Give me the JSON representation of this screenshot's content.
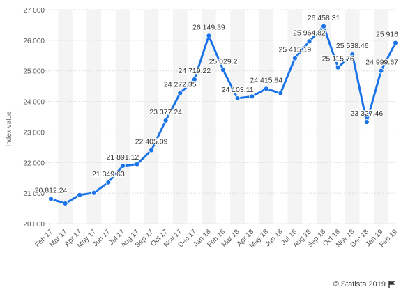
{
  "chart_data": {
    "type": "line",
    "ylabel": "Index value",
    "xlabel": "",
    "ylim": [
      20000,
      27000
    ],
    "yticks": [
      20000,
      21000,
      22000,
      23000,
      24000,
      25000,
      26000,
      27000
    ],
    "ytick_labels": [
      "20 000",
      "21 000",
      "22 000",
      "23 000",
      "24 000",
      "25 000",
      "26 000",
      "27 000"
    ],
    "grid": true,
    "legend": "none",
    "line_color": "#1a73e8",
    "categories": [
      "Feb 17",
      "Mar 17",
      "Apr 17",
      "May 17",
      "Jun 17",
      "Jul 17",
      "Aug 17",
      "Sep 17",
      "Oct 17",
      "Nov 17",
      "Dec 17",
      "Jan 18",
      "Feb 18",
      "Mar 18",
      "Apr 18",
      "May 18",
      "Jun 18",
      "Jul 18",
      "Aug 18",
      "Sep 18",
      "Oct 18",
      "Nov 18",
      "Dec 18",
      "Jan 19",
      "Feb 19"
    ],
    "values": [
      20812.24,
      20663,
      20940,
      21009,
      21349.63,
      21891.12,
      21948,
      22405.09,
      23377.24,
      24272.35,
      24719.22,
      26149.39,
      25029.2,
      24103.11,
      24163,
      24415.84,
      24271,
      25415.19,
      25964.82,
      26458.31,
      25115.76,
      25538.46,
      23327.46,
      24999.67,
      25916
    ],
    "data_labels": [
      "20 812.24",
      "",
      "",
      "",
      "21 349.63",
      "21 891.12",
      "",
      "22 405.09",
      "23 377.24",
      "24 272.35",
      "24 719.22",
      "26 149.39",
      "25 029.2",
      "24 103.11",
      "",
      "24 415.84",
      "",
      "25 415.19",
      "25 964.82",
      "26 458.31",
      "25 115.76",
      "25 538.46",
      "23 327.46",
      "24 999.67",
      "25 916"
    ]
  },
  "credit": {
    "text": "© Statista 2019",
    "icon": "flag-icon"
  }
}
